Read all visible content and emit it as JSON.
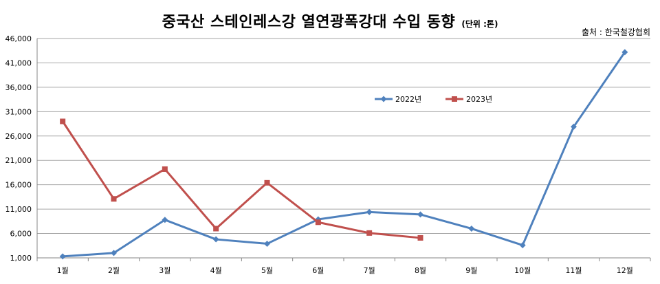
{
  "header": {
    "title": "중국산 스테인레스강 열연광폭강대 수입 동향",
    "unit": "(단위 :톤)",
    "source": "출처 : 한국철강협회"
  },
  "colors": {
    "series_2022": "#4f81bd",
    "series_2023": "#c0504d",
    "grid": "#a6a6a6"
  },
  "chart_data": {
    "type": "line",
    "title": "중국산 스테인레스강 열연광폭강대 수입 동향",
    "xlabel": "",
    "ylabel": "",
    "categories": [
      "1월",
      "2월",
      "3월",
      "4월",
      "5월",
      "6월",
      "7월",
      "8월",
      "9월",
      "10월",
      "11월",
      "12월"
    ],
    "ylim": [
      1000,
      46000
    ],
    "yticks": [
      1000,
      6000,
      11000,
      16000,
      21000,
      26000,
      31000,
      36000,
      41000,
      46000
    ],
    "ytick_labels": [
      "1,000",
      "6,000",
      "11,000",
      "16,000",
      "21,000",
      "26,000",
      "31,000",
      "36,000",
      "41,000",
      "46,000"
    ],
    "grid": true,
    "legend_position": "top-center",
    "series": [
      {
        "name": "2022년",
        "marker": "diamond",
        "values": [
          1300,
          2000,
          8800,
          4800,
          3900,
          8900,
          10400,
          9900,
          7000,
          3600,
          27900,
          43200
        ]
      },
      {
        "name": "2023년",
        "marker": "square",
        "values": [
          29000,
          13100,
          19200,
          7000,
          16400,
          8300,
          6100,
          5100,
          null,
          null,
          null,
          null
        ]
      }
    ]
  }
}
